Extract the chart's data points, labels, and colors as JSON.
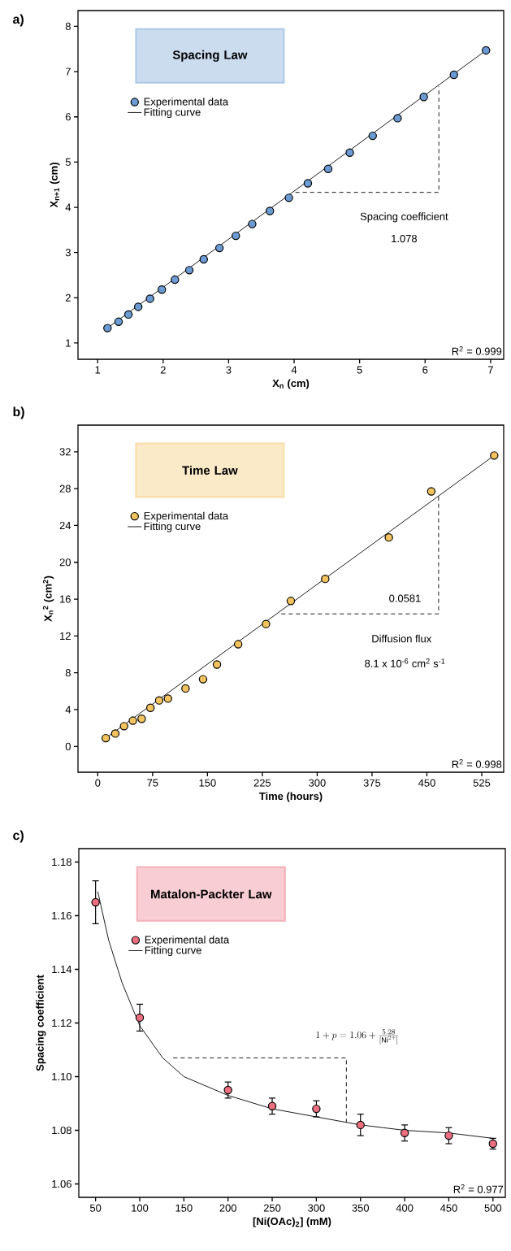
{
  "chart_data": [
    {
      "type": "scatter",
      "title": "a)",
      "subtitle": "Spacing Law",
      "xlabel": "X$_{n}$ (cm)",
      "ylabel": "X$_{n+1}$ (cm)",
      "xlim": [
        0.7,
        7.2
      ],
      "ylim": [
        0.64,
        8.35
      ],
      "xticks": [
        1,
        2,
        3,
        4,
        5,
        6,
        7
      ],
      "yticks": [
        1,
        2,
        3,
        4,
        5,
        6,
        7,
        8
      ],
      "legend": "top left",
      "series": [
        {
          "name": "Experimental data",
          "color": "#6b9bd2",
          "marker": "circle",
          "x": [
            1.15,
            1.32,
            1.47,
            1.62,
            1.8,
            1.98,
            2.18,
            2.4,
            2.62,
            2.86,
            3.11,
            3.36,
            3.63,
            3.92,
            4.21,
            4.52,
            4.85,
            5.2,
            5.58,
            5.98,
            6.44,
            6.93
          ],
          "values": [
            1.33,
            1.47,
            1.63,
            1.8,
            1.98,
            2.18,
            2.4,
            2.61,
            2.85,
            3.1,
            3.37,
            3.63,
            3.92,
            4.21,
            4.53,
            4.85,
            5.21,
            5.58,
            5.97,
            6.44,
            6.93,
            7.47
          ]
        },
        {
          "name": "Fitting curve",
          "type": "line",
          "color": "#000000",
          "x": [
            1.15,
            6.93
          ],
          "values": [
            1.33,
            7.47
          ]
        },
        {
          "type": "line",
          "color": "#000000",
          "line_style": "dashed",
          "x": [
            4.02,
            6.21,
            6.21
          ],
          "values": [
            4.33,
            4.33,
            6.67
          ]
        }
      ],
      "annotations": [
        "Spacing coefficient",
        "1.078",
        "R$^{2}$ = 0.999"
      ]
    },
    {
      "type": "scatter",
      "title": "b)",
      "subtitle": "Time Law",
      "xlabel": "Time (hours)",
      "ylabel": "X$_{n}$$^{2}$ (cm$^{2}$)",
      "xlim": [
        -27,
        555
      ],
      "ylim": [
        -2.8,
        34.9
      ],
      "xticks": [
        0,
        75,
        150,
        225,
        300,
        375,
        450,
        525
      ],
      "yticks": [
        0,
        4,
        8,
        12,
        16,
        20,
        24,
        28,
        32
      ],
      "legend": "top left",
      "series": [
        {
          "name": "Experimental data",
          "color": "#f2c35e",
          "marker": "circle",
          "x": [
            11,
            24,
            36,
            48,
            60,
            72,
            84,
            96,
            120,
            144,
            163,
            192,
            230,
            264,
            311,
            398,
            456,
            542
          ],
          "values": [
            0.9,
            1.4,
            2.2,
            2.8,
            3.0,
            4.2,
            5.0,
            5.2,
            6.3,
            7.3,
            8.9,
            11.1,
            13.3,
            15.8,
            18.2,
            22.7,
            27.7,
            31.6
          ]
        },
        {
          "name": "Fitting curve",
          "type": "line",
          "color": "#000000",
          "x": [
            11,
            542
          ],
          "values": [
            0.9,
            31.6
          ]
        },
        {
          "type": "line",
          "color": "#000000",
          "line_style": "dashed",
          "x": [
            251,
            466,
            466
          ],
          "values": [
            14.4,
            14.4,
            27.2
          ]
        }
      ],
      "annotations": [
        "0.0581",
        "Diffusion flux",
        "8.1 x 10$^{-6}$ cm$^{2}$ s$^{-1}$",
        "R$^{2}$ = 0.998"
      ]
    },
    {
      "type": "scatter",
      "title": "c)",
      "subtitle": "Matalon-Packter Law",
      "xlabel": "[Ni(OAc)$_{2}$] (mM)",
      "ylabel": "Spacing coefficient",
      "xlim": [
        31,
        514
      ],
      "ylim": [
        1.055,
        1.185
      ],
      "xticks": [
        50,
        100,
        150,
        200,
        250,
        300,
        350,
        400,
        450,
        500
      ],
      "yticks": [
        1.06,
        1.08,
        {
          "value": 1.1,
          "label": "1.10"
        },
        1.12,
        1.14,
        1.16,
        1.18
      ],
      "legend": "top left",
      "series": [
        {
          "name": "Experimental data",
          "color": "#ec6f80",
          "marker": "circle",
          "x": [
            50,
            100,
            200,
            250,
            300,
            350,
            400,
            450,
            500
          ],
          "values": [
            1.165,
            1.122,
            1.095,
            1.089,
            1.088,
            1.082,
            1.079,
            1.078,
            1.075
          ],
          "errors": [
            0.008,
            0.005,
            0.003,
            0.003,
            0.003,
            0.004,
            0.003,
            0.003,
            0.002
          ]
        },
        {
          "name": "Fitting curve",
          "type": "line",
          "color": "#000000",
          "x": [
            52.5,
            64.7,
            80,
            100,
            126,
            150,
            200,
            250,
            300,
            350,
            400,
            450,
            500
          ],
          "values": [
            1.169,
            1.151,
            1.135,
            1.119,
            1.107,
            1.1,
            1.093,
            1.088,
            1.085,
            1.082,
            1.08,
            1.079,
            1.077
          ]
        },
        {
          "type": "line",
          "color": "#000000",
          "line_style": "dashed",
          "x": [
            138,
            334,
            334
          ],
          "values": [
            1.107,
            1.107,
            1.083
          ]
        }
      ],
      "annotations": [
        "1 + p = 1.06 + \\frac{5.28}{[\\mathrm{Ni}^{2+}]}",
        "R$^{2}$ = 0.977"
      ]
    }
  ]
}
